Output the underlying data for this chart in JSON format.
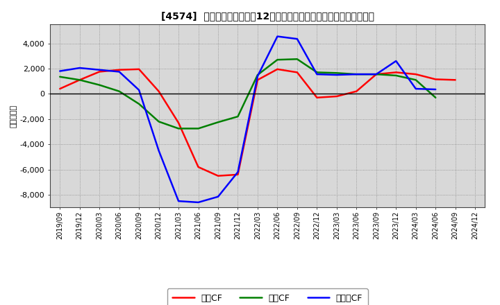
{
  "title": "[4574]  キャッシュフローの12か月移動合計の対前年同期増減額の推移",
  "ylabel": "（百万円）",
  "background_color": "#ffffff",
  "plot_background_color": "#d8d8d8",
  "x_labels": [
    "2019/09",
    "2019/12",
    "2020/03",
    "2020/06",
    "2020/09",
    "2020/12",
    "2021/03",
    "2021/06",
    "2021/09",
    "2021/12",
    "2022/03",
    "2022/06",
    "2022/09",
    "2022/12",
    "2023/03",
    "2023/06",
    "2023/09",
    "2023/12",
    "2024/03",
    "2024/06",
    "2024/09",
    "2024/12"
  ],
  "営業CF": [
    400,
    1100,
    1750,
    1900,
    1950,
    200,
    -2300,
    -5800,
    -6500,
    -6400,
    1100,
    1950,
    1700,
    -300,
    -200,
    200,
    1550,
    1700,
    1550,
    1150,
    1100,
    null
  ],
  "投資CF": [
    1350,
    1100,
    700,
    200,
    -800,
    -2200,
    -2750,
    -2750,
    -2250,
    -1800,
    1500,
    2700,
    2750,
    1700,
    1650,
    1550,
    1550,
    1450,
    1100,
    -300,
    null,
    null
  ],
  "フリーCF": [
    1800,
    2050,
    1900,
    1750,
    300,
    -4500,
    -8500,
    -8600,
    -8150,
    -6200,
    1400,
    4550,
    4350,
    1550,
    1500,
    1550,
    1550,
    2600,
    400,
    350,
    null,
    null
  ],
  "ylim": [
    -9000,
    5500
  ],
  "yticks": [
    -8000,
    -6000,
    -4000,
    -2000,
    0,
    2000,
    4000
  ],
  "line_colors": {
    "営業CF": "#ff0000",
    "投資CF": "#008000",
    "フリーCF": "#0000ff"
  },
  "line_width": 1.8
}
